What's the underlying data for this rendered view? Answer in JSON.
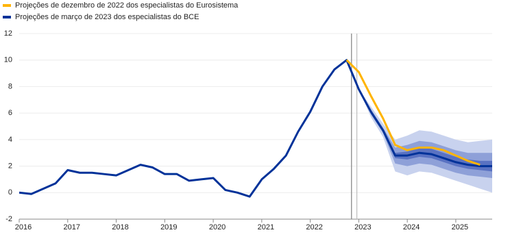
{
  "chart_data": {
    "type": "line",
    "x": [
      2016,
      2016.25,
      2016.5,
      2016.75,
      2017,
      2017.25,
      2017.5,
      2017.75,
      2018,
      2018.25,
      2018.5,
      2018.75,
      2019,
      2019.25,
      2019.5,
      2019.75,
      2020,
      2020.25,
      2020.5,
      2020.75,
      2021,
      2021.25,
      2021.5,
      2021.75,
      2022,
      2022.25,
      2022.5,
      2022.75,
      2023,
      2023.25,
      2023.5,
      2023.75,
      2024,
      2024.25,
      2024.5,
      2024.75,
      2025,
      2025.25,
      2025.5,
      2025.75
    ],
    "series": [
      {
        "name": "Projeções de dezembro de 2022 dos especialistas do Eurosistema",
        "color": "#ffb400",
        "values": [
          null,
          null,
          null,
          null,
          null,
          null,
          null,
          null,
          null,
          null,
          null,
          null,
          null,
          null,
          null,
          null,
          null,
          null,
          null,
          null,
          null,
          null,
          null,
          null,
          null,
          null,
          null,
          10.0,
          9.1,
          7.3,
          5.6,
          3.6,
          3.2,
          3.4,
          3.4,
          3.2,
          2.8,
          2.4,
          2.1,
          null
        ]
      },
      {
        "name": "Projeções de março de 2023 dos especialistas do BCE",
        "color": "#003299",
        "values": [
          0.0,
          -0.1,
          0.3,
          0.7,
          1.7,
          1.5,
          1.5,
          1.4,
          1.3,
          1.7,
          2.1,
          1.9,
          1.4,
          1.4,
          0.9,
          1.0,
          1.1,
          0.2,
          0.0,
          -0.3,
          1.0,
          1.8,
          2.8,
          4.6,
          6.1,
          8.0,
          9.3,
          10.0,
          7.8,
          6.1,
          4.7,
          2.8,
          2.8,
          3.0,
          2.9,
          2.6,
          2.3,
          2.1,
          2.0,
          2.0
        ]
      }
    ],
    "bands": {
      "x": [
        2023,
        2023.25,
        2023.5,
        2023.75,
        2024,
        2024.25,
        2024.5,
        2024.75,
        2025,
        2025.25,
        2025.5,
        2025.75
      ],
      "levels": [
        {
          "color": "#c8d2ee",
          "lower": [
            7.8,
            5.7,
            4.2,
            1.6,
            1.3,
            1.6,
            1.5,
            1.2,
            0.9,
            0.6,
            0.3,
            0.0
          ],
          "upper": [
            7.8,
            6.5,
            5.2,
            4.0,
            4.3,
            4.7,
            4.6,
            4.3,
            4.0,
            3.8,
            3.9,
            4.0
          ]
        },
        {
          "color": "#8ea0d8",
          "lower": [
            7.8,
            5.9,
            4.5,
            2.2,
            2.0,
            2.2,
            2.1,
            1.8,
            1.5,
            1.3,
            1.2,
            1.1
          ],
          "upper": [
            7.8,
            6.3,
            4.9,
            3.4,
            3.6,
            3.9,
            3.8,
            3.5,
            3.2,
            3.0,
            3.0,
            3.0
          ]
        },
        {
          "color": "#5a72c2",
          "lower": [
            7.8,
            6.0,
            4.6,
            2.6,
            2.5,
            2.7,
            2.6,
            2.3,
            2.0,
            1.8,
            1.7,
            1.6
          ],
          "upper": [
            7.8,
            6.2,
            4.8,
            3.0,
            3.1,
            3.4,
            3.3,
            3.0,
            2.7,
            2.5,
            2.4,
            2.4
          ]
        }
      ]
    },
    "vlines": [
      {
        "x": 2022.85,
        "color": "#888888"
      },
      {
        "x": 2022.96,
        "color": "#c0c0c0"
      }
    ],
    "xlim": [
      2016,
      2025.75
    ],
    "xticks": [
      2016,
      2017,
      2018,
      2019,
      2020,
      2021,
      2022,
      2023,
      2024,
      2025
    ],
    "ylim": [
      -2,
      12
    ],
    "yticks": [
      -2,
      0,
      2,
      4,
      6,
      8,
      10,
      12
    ],
    "grid": true
  }
}
